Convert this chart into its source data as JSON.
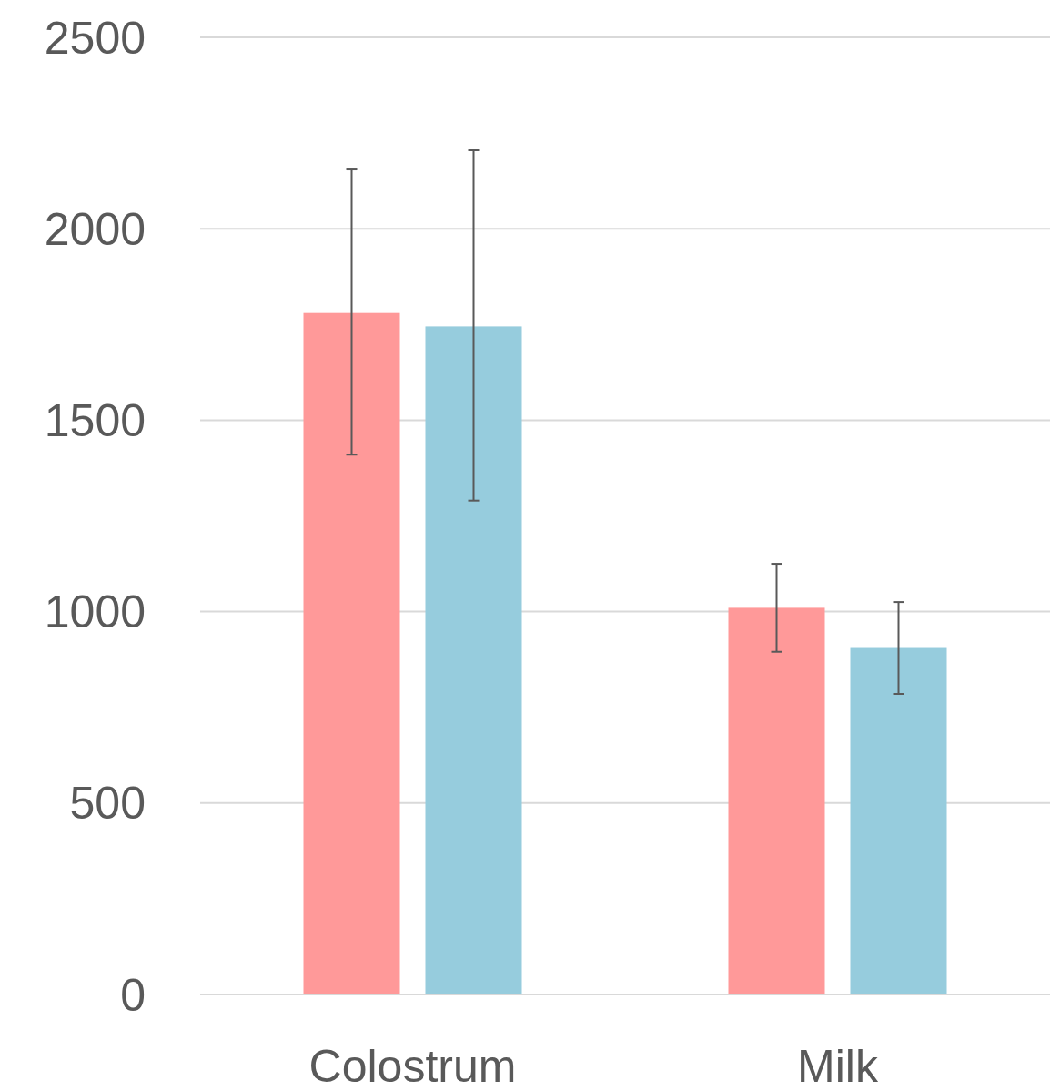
{
  "chart_data": {
    "type": "bar",
    "categories": [
      "Colostrum",
      "Milk"
    ],
    "series": [
      {
        "color": "#ff9999",
        "values": [
          1780,
          1010
        ],
        "errors": [
          [
            1410,
            2155
          ],
          [
            895,
            1125
          ]
        ]
      },
      {
        "color": "#96ccdd",
        "values": [
          1745,
          905
        ],
        "errors": [
          [
            1290,
            2205
          ],
          [
            785,
            1025
          ]
        ]
      }
    ],
    "ylim": [
      0,
      2500
    ],
    "yticks": [
      0,
      500,
      1000,
      1500,
      2000,
      2500
    ],
    "grid": "y"
  }
}
